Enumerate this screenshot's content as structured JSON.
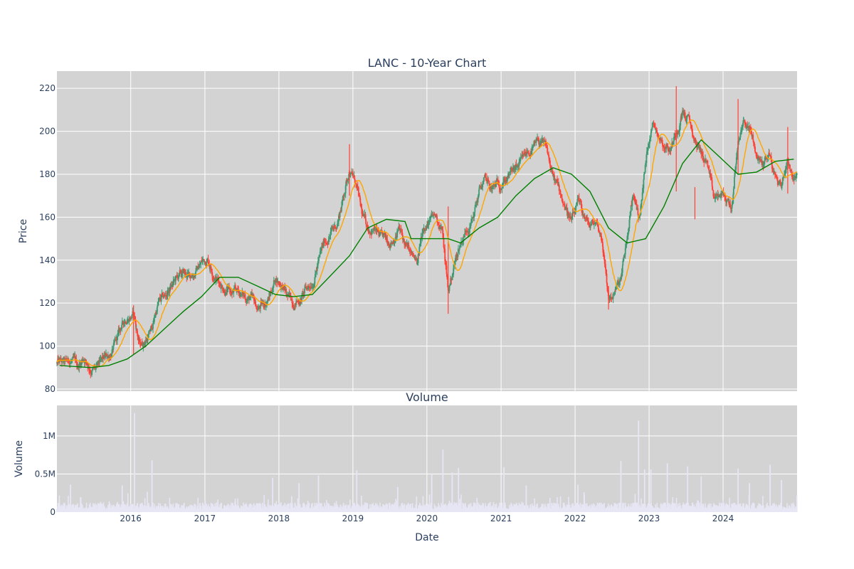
{
  "chart_data": [
    {
      "type": "candlestick",
      "title": "LANC - 10-Year Chart",
      "ylabel": "Price",
      "ylim": [
        79,
        228
      ],
      "yticks": [
        80,
        100,
        120,
        140,
        160,
        180,
        200,
        220
      ],
      "xlim": [
        "2015-01-02",
        "2024-12-31"
      ],
      "grid": true,
      "up_color": "#3d9970",
      "down_color": "#ff4136",
      "ma_short_color": "#ffa500",
      "ma_long_color": "#008000",
      "close_path": [
        [
          "2015-01",
          92
        ],
        [
          "2015-02",
          91
        ],
        [
          "2015-03",
          93
        ],
        [
          "2015-04",
          90
        ],
        [
          "2015-05",
          95
        ],
        [
          "2015-06",
          90
        ],
        [
          "2015-07",
          89
        ],
        [
          "2015-08",
          92
        ],
        [
          "2015-09",
          95
        ],
        [
          "2015-10",
          100
        ],
        [
          "2015-11",
          108
        ],
        [
          "2015-12",
          114
        ],
        [
          "2016-01",
          115
        ],
        [
          "2016-02",
          100
        ],
        [
          "2016-03",
          103
        ],
        [
          "2016-04",
          108
        ],
        [
          "2016-05",
          120
        ],
        [
          "2016-06",
          122
        ],
        [
          "2016-07",
          127
        ],
        [
          "2016-08",
          131
        ],
        [
          "2016-09",
          133
        ],
        [
          "2016-10",
          132
        ],
        [
          "2016-11",
          135
        ],
        [
          "2016-12",
          139
        ],
        [
          "2017-01",
          141
        ],
        [
          "2017-02",
          134
        ],
        [
          "2017-03",
          130
        ],
        [
          "2017-04",
          127
        ],
        [
          "2017-05",
          124
        ],
        [
          "2017-06",
          125
        ],
        [
          "2017-07",
          123
        ],
        [
          "2017-08",
          122
        ],
        [
          "2017-09",
          117
        ],
        [
          "2017-10",
          119
        ],
        [
          "2017-11",
          123
        ],
        [
          "2017-12",
          132
        ],
        [
          "2018-01",
          129
        ],
        [
          "2018-02",
          122
        ],
        [
          "2018-03",
          121
        ],
        [
          "2018-04",
          122
        ],
        [
          "2018-05",
          126
        ],
        [
          "2018-06",
          130
        ],
        [
          "2018-07",
          140
        ],
        [
          "2018-08",
          148
        ],
        [
          "2018-09",
          153
        ],
        [
          "2018-10",
          157
        ],
        [
          "2018-11",
          170
        ],
        [
          "2018-12",
          183
        ],
        [
          "2019-01",
          176
        ],
        [
          "2019-02",
          160
        ],
        [
          "2019-03",
          155
        ],
        [
          "2019-04",
          155
        ],
        [
          "2019-05",
          150
        ],
        [
          "2019-06",
          148
        ],
        [
          "2019-07",
          150
        ],
        [
          "2019-08",
          155
        ],
        [
          "2019-09",
          147
        ],
        [
          "2019-10",
          142
        ],
        [
          "2019-11",
          137
        ],
        [
          "2019-12",
          157
        ],
        [
          "2020-01",
          158
        ],
        [
          "2020-02",
          160
        ],
        [
          "2020-03",
          155
        ],
        [
          "2020-04",
          125
        ],
        [
          "2020-05",
          138
        ],
        [
          "2020-06",
          148
        ],
        [
          "2020-07",
          155
        ],
        [
          "2020-08",
          160
        ],
        [
          "2020-09",
          172
        ],
        [
          "2020-10",
          177
        ],
        [
          "2020-11",
          172
        ],
        [
          "2020-12",
          175
        ],
        [
          "2021-01",
          178
        ],
        [
          "2021-02",
          180
        ],
        [
          "2021-03",
          182
        ],
        [
          "2021-04",
          185
        ],
        [
          "2021-05",
          190
        ],
        [
          "2021-06",
          192
        ],
        [
          "2021-07",
          195
        ],
        [
          "2021-08",
          190
        ],
        [
          "2021-09",
          178
        ],
        [
          "2021-10",
          172
        ],
        [
          "2021-11",
          165
        ],
        [
          "2021-12",
          158
        ],
        [
          "2022-01",
          165
        ],
        [
          "2022-02",
          160
        ],
        [
          "2022-03",
          155
        ],
        [
          "2022-04",
          158
        ],
        [
          "2022-05",
          150
        ],
        [
          "2022-06",
          122
        ],
        [
          "2022-07",
          125
        ],
        [
          "2022-08",
          130
        ],
        [
          "2022-09",
          150
        ],
        [
          "2022-10",
          170
        ],
        [
          "2022-11",
          160
        ],
        [
          "2022-12",
          185
        ],
        [
          "2023-01",
          205
        ],
        [
          "2023-02",
          200
        ],
        [
          "2023-03",
          195
        ],
        [
          "2023-04",
          192
        ],
        [
          "2023-05",
          200
        ],
        [
          "2023-06",
          210
        ],
        [
          "2023-07",
          205
        ],
        [
          "2023-08",
          195
        ],
        [
          "2023-09",
          190
        ],
        [
          "2023-10",
          185
        ],
        [
          "2023-11",
          167
        ],
        [
          "2023-12",
          170
        ],
        [
          "2024-01",
          168
        ],
        [
          "2024-02",
          165
        ],
        [
          "2024-03",
          195
        ],
        [
          "2024-04",
          205
        ],
        [
          "2024-05",
          200
        ],
        [
          "2024-06",
          188
        ],
        [
          "2024-07",
          185
        ],
        [
          "2024-08",
          190
        ],
        [
          "2024-09",
          178
        ],
        [
          "2024-10",
          175
        ],
        [
          "2024-11",
          188
        ],
        [
          "2024-12",
          178
        ]
      ],
      "ma_long_path": [
        [
          "2015-01",
          91
        ],
        [
          "2015-06",
          90
        ],
        [
          "2015-09",
          91
        ],
        [
          "2015-12",
          94
        ],
        [
          "2016-03",
          100
        ],
        [
          "2016-06",
          108
        ],
        [
          "2016-09",
          116
        ],
        [
          "2016-12",
          123
        ],
        [
          "2017-03",
          132
        ],
        [
          "2017-06",
          132
        ],
        [
          "2017-09",
          128
        ],
        [
          "2017-12",
          124
        ],
        [
          "2018-03",
          123
        ],
        [
          "2018-06",
          124
        ],
        [
          "2018-09",
          133
        ],
        [
          "2018-12",
          142
        ],
        [
          "2019-03",
          155
        ],
        [
          "2019-06",
          159
        ],
        [
          "2019-09",
          158
        ],
        [
          "2019-10",
          150
        ],
        [
          "2020-01",
          150
        ],
        [
          "2020-04",
          150
        ],
        [
          "2020-06",
          148
        ],
        [
          "2020-09",
          155
        ],
        [
          "2020-12",
          160
        ],
        [
          "2021-03",
          170
        ],
        [
          "2021-06",
          178
        ],
        [
          "2021-09",
          183
        ],
        [
          "2021-12",
          180
        ],
        [
          "2022-03",
          172
        ],
        [
          "2022-06",
          155
        ],
        [
          "2022-09",
          148
        ],
        [
          "2022-12",
          150
        ],
        [
          "2023-03",
          165
        ],
        [
          "2023-06",
          185
        ],
        [
          "2023-09",
          196
        ],
        [
          "2023-12",
          188
        ],
        [
          "2024-03",
          180
        ],
        [
          "2024-06",
          181
        ],
        [
          "2024-09",
          186
        ],
        [
          "2024-12",
          187
        ]
      ],
      "spikes": [
        [
          "2020-04",
          115,
          165
        ],
        [
          "2022-06",
          117,
          128
        ],
        [
          "2023-05",
          172,
          221
        ],
        [
          "2024-03",
          180,
          215
        ],
        [
          "2018-12",
          170,
          194
        ],
        [
          "2016-01",
          96,
          119
        ],
        [
          "2023-08",
          159,
          174
        ],
        [
          "2024-11",
          171,
          202
        ]
      ]
    },
    {
      "type": "bar",
      "title": "Volume",
      "ylabel": "Volume",
      "xlabel": "Date",
      "ylim": [
        0,
        1400000
      ],
      "yticks": [
        0,
        500000,
        1000000
      ],
      "ytick_labels": [
        "0",
        "0.5M",
        "1M"
      ],
      "xticks": [
        "2016",
        "2017",
        "2018",
        "2019",
        "2020",
        "2021",
        "2022",
        "2023",
        "2024"
      ],
      "bar_color": "#e6e6f5",
      "baseline_volume": 70000,
      "peaks": [
        [
          "2016-01-20",
          1300000
        ],
        [
          "2022-11-10",
          1200000
        ],
        [
          "2020-03-20",
          820000
        ],
        [
          "2016-04-15",
          680000
        ],
        [
          "2022-08-15",
          670000
        ],
        [
          "2023-04-01",
          640000
        ],
        [
          "2024-08-20",
          620000
        ],
        [
          "2023-07-10",
          600000
        ],
        [
          "2021-01-15",
          590000
        ],
        [
          "2020-06-05",
          580000
        ],
        [
          "2022-12-10",
          560000
        ],
        [
          "2023-01-10",
          560000
        ],
        [
          "2024-03-15",
          570000
        ],
        [
          "2019-01-20",
          550000
        ],
        [
          "2020-05-05",
          520000
        ],
        [
          "2020-01-25",
          500000
        ],
        [
          "2018-07-15",
          480000
        ],
        [
          "2023-09-15",
          470000
        ],
        [
          "2017-12-01",
          450000
        ],
        [
          "2018-04-10",
          380000
        ],
        [
          "2015-03-10",
          360000
        ],
        [
          "2015-11-20",
          350000
        ],
        [
          "2019-08-10",
          330000
        ],
        [
          "2021-05-05",
          350000
        ],
        [
          "2022-01-15",
          360000
        ],
        [
          "2024-05-10",
          380000
        ],
        [
          "2024-10-15",
          420000
        ]
      ]
    }
  ]
}
